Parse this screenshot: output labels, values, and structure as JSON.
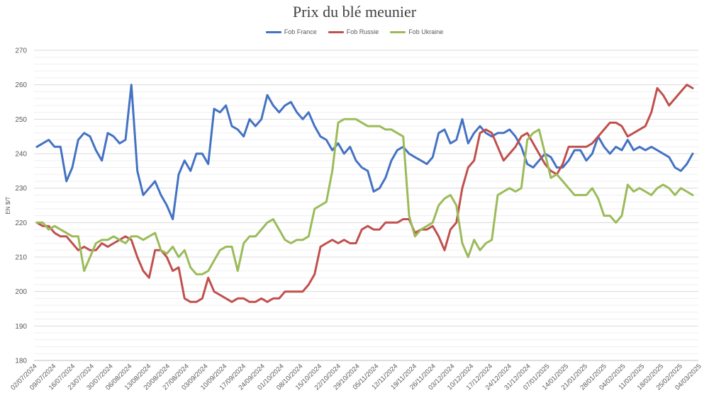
{
  "chart_data": {
    "type": "line",
    "title": "Prix du blé meunier",
    "ylabel": "EN $/T",
    "xlabel": "",
    "ylim": [
      180,
      270
    ],
    "yticks": [
      180,
      190,
      200,
      210,
      220,
      230,
      240,
      250,
      260,
      270
    ],
    "grid": true,
    "legend_position": "top-center",
    "x_tick_labels": [
      "02/07/2024",
      "09/07/2024",
      "16/07/2024",
      "23/07/2024",
      "30/07/2024",
      "06/08/2024",
      "13/08/2024",
      "20/08/2024",
      "27/08/2024",
      "03/09/2024",
      "10/09/2024",
      "17/09/2024",
      "24/09/2024",
      "01/10/2024",
      "08/10/2024",
      "15/10/2024",
      "22/10/2024",
      "29/10/2024",
      "05/11/2024",
      "12/11/2024",
      "19/11/2024",
      "26/11/2024",
      "03/12/2024",
      "10/12/2024",
      "17/12/2024",
      "24/12/2024",
      "31/12/2024",
      "07/01/2025",
      "14/01/2025",
      "21/01/2025",
      "28/01/2025",
      "04/02/2025",
      "11/02/2025",
      "18/02/2025",
      "25/02/2025",
      "04/03/2025"
    ],
    "series": [
      {
        "name": "Fob France",
        "color": "#4472C4",
        "values": [
          242,
          243,
          244,
          242,
          242,
          232,
          236,
          244,
          246,
          245,
          241,
          238,
          246,
          245,
          243,
          244,
          260,
          235,
          228,
          230,
          232,
          228,
          225,
          221,
          234,
          238,
          235,
          240,
          240,
          237,
          253,
          252,
          254,
          248,
          247,
          245,
          250,
          248,
          250,
          257,
          254,
          252,
          254,
          255,
          252,
          250,
          252,
          248,
          245,
          244,
          241,
          243,
          240,
          242,
          238,
          236,
          235,
          229,
          230,
          233,
          238,
          241,
          242,
          240,
          239,
          238,
          237,
          239,
          246,
          247,
          243,
          244,
          250,
          243,
          246,
          248,
          246,
          245,
          246,
          246,
          247,
          245,
          242,
          237,
          236,
          238,
          240,
          239,
          236,
          236,
          238,
          241,
          241,
          238,
          240,
          245,
          242,
          240,
          242,
          241,
          244,
          241,
          242,
          241,
          242,
          241,
          240,
          239,
          236,
          235,
          237,
          240
        ]
      },
      {
        "name": "Fob Russie",
        "color": "#C0504D",
        "values": [
          220,
          219,
          219,
          217,
          216,
          216,
          214,
          212,
          213,
          212,
          212,
          214,
          213,
          214,
          215,
          216,
          215,
          210,
          206,
          204,
          212,
          212,
          210,
          206,
          207,
          198,
          197,
          197,
          198,
          204,
          200,
          199,
          198,
          197,
          198,
          198,
          197,
          197,
          198,
          197,
          198,
          198,
          200,
          200,
          200,
          200,
          202,
          205,
          213,
          214,
          215,
          214,
          215,
          214,
          214,
          218,
          219,
          218,
          218,
          220,
          220,
          220,
          221,
          221,
          217,
          218,
          218,
          219,
          216,
          212,
          218,
          220,
          230,
          236,
          238,
          246,
          247,
          246,
          242,
          238,
          240,
          242,
          245,
          246,
          243,
          240,
          237,
          235,
          234,
          237,
          242,
          242,
          242,
          242,
          243,
          245,
          247,
          249,
          249,
          248,
          245,
          246,
          247,
          248,
          252,
          259,
          257,
          254,
          256,
          258,
          260,
          259
        ]
      },
      {
        "name": "Fob Ukraine",
        "color": "#9BBB59",
        "values": [
          220,
          220,
          218,
          219,
          218,
          217,
          216,
          216,
          206,
          210,
          214,
          215,
          215,
          216,
          215,
          214,
          216,
          216,
          215,
          216,
          217,
          212,
          211,
          213,
          210,
          212,
          207,
          205,
          205,
          206,
          209,
          212,
          213,
          213,
          206,
          214,
          216,
          216,
          218,
          220,
          221,
          218,
          215,
          214,
          215,
          215,
          216,
          224,
          225,
          226,
          235,
          249,
          250,
          250,
          250,
          249,
          248,
          248,
          248,
          247,
          247,
          246,
          245,
          222,
          216,
          218,
          219,
          220,
          225,
          227,
          228,
          225,
          214,
          210,
          215,
          212,
          214,
          215,
          228,
          229,
          230,
          229,
          230,
          244,
          246,
          247,
          240,
          233,
          234,
          232,
          230,
          228,
          228,
          228,
          230,
          227,
          222,
          222,
          220,
          222,
          231,
          229,
          230,
          229,
          228,
          230,
          231,
          230,
          228,
          230,
          229,
          228
        ]
      }
    ]
  }
}
